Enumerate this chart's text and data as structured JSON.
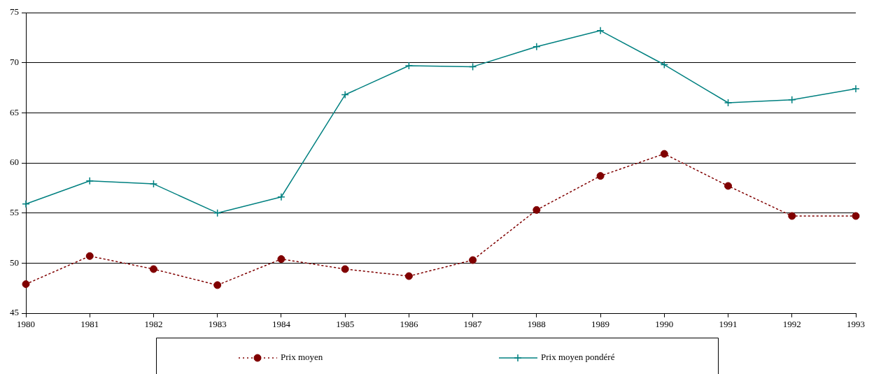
{
  "chart_data": {
    "type": "line",
    "categories": [
      "1980",
      "1981",
      "1982",
      "1983",
      "1984",
      "1985",
      "1986",
      "1987",
      "1988",
      "1989",
      "1990",
      "1991",
      "1992",
      "1993"
    ],
    "series": [
      {
        "name": "Prix moyen",
        "color": "#800000",
        "marker": "circle",
        "line_style": "dotted",
        "values": [
          47.9,
          50.7,
          49.4,
          47.8,
          50.4,
          49.4,
          48.7,
          50.3,
          55.3,
          58.7,
          60.9,
          57.7,
          54.7,
          54.7
        ]
      },
      {
        "name": "Prix moyen pondéré",
        "color": "#008080",
        "marker": "cross",
        "line_style": "solid",
        "values": [
          55.9,
          58.2,
          57.9,
          55.0,
          56.6,
          66.8,
          69.7,
          69.6,
          71.6,
          73.2,
          69.8,
          66.0,
          66.3,
          67.4
        ]
      }
    ],
    "ylim": [
      45,
      75
    ],
    "yticks": [
      45,
      50,
      55,
      60,
      65,
      70,
      75
    ],
    "grid": "y",
    "legend": "bottom"
  }
}
